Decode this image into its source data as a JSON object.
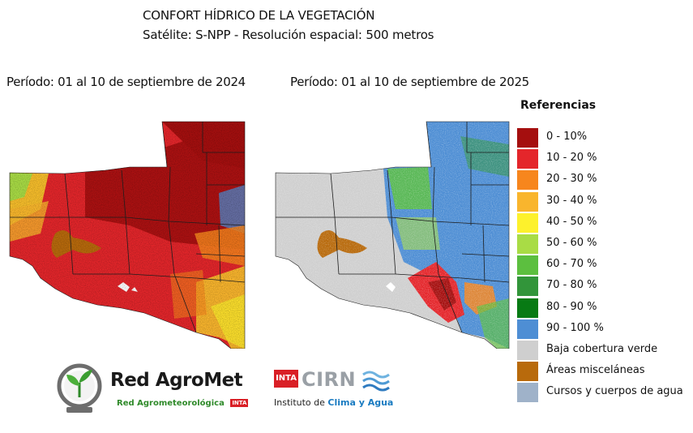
{
  "header": {
    "title": "CONFORT HÍDRICO DE LA VEGETACIÓN",
    "subtitle": "Satélite: S-NPP - Resolución espacial: 500 metros"
  },
  "maps": [
    {
      "period": "Período: 01 al 10 de septiembre de 2024"
    },
    {
      "period": "Período: 01 al 10 de septiembre de 2025"
    }
  ],
  "legend": {
    "title": "Referencias",
    "items": [
      {
        "label": "0 - 10%",
        "color": "#a50f0f"
      },
      {
        "label": "10 - 20 %",
        "color": "#e4262b"
      },
      {
        "label": "20 - 30 %",
        "color": "#f7861d"
      },
      {
        "label": "30 - 40 %",
        "color": "#f9b52d"
      },
      {
        "label": "40 - 50 %",
        "color": "#fdf12c"
      },
      {
        "label": "50 - 60 %",
        "color": "#a9dc45"
      },
      {
        "label": "60 - 70 %",
        "color": "#5cbf3f"
      },
      {
        "label": "70 - 80 %",
        "color": "#32953a"
      },
      {
        "label": "80 - 90 %",
        "color": "#087a14"
      },
      {
        "label": "90 - 100 %",
        "color": "#4e8ed4"
      },
      {
        "label": "Baja cobertura verde",
        "color": "#cfcfcf"
      },
      {
        "label": "Áreas misceláneas",
        "color": "#b86a0c"
      },
      {
        "label": "Cursos y cuerpos de agua",
        "color": "#9fb2c9"
      }
    ]
  },
  "logos": {
    "agromet_name": "Red AgroMet",
    "agromet_sub": "Red Agrometeorológica",
    "inta_mark": "INTA",
    "cirn_name": "CIRN",
    "cirn_sub_prefix": "Instituto de ",
    "cirn_sub_accent": "Clima y Agua"
  }
}
